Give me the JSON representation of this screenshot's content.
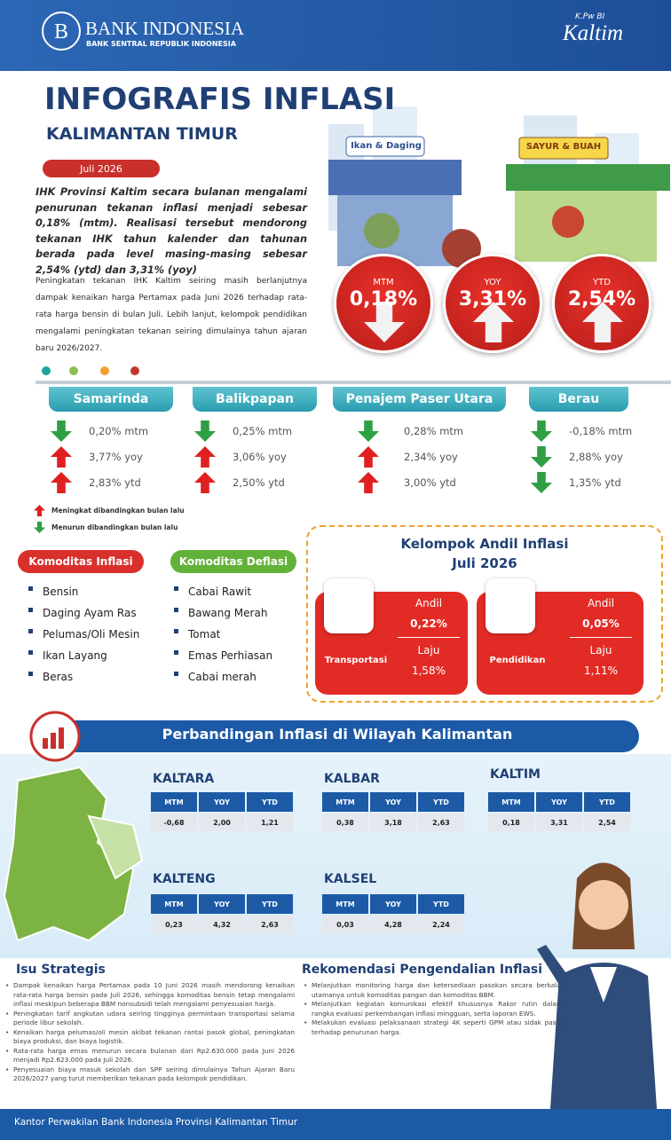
{
  "header": {
    "bank_name": "BANK INDONESIA",
    "bank_sub": "BANK SENTRAL REPUBLIK INDONESIA",
    "kpw_small": "K.Pw BI",
    "kpw_big": "Kaltim"
  },
  "title": "INFOGRAFIS INFLASI",
  "subtitle": "KALIMANTAN TIMUR",
  "date": "Juli 2026",
  "intro": "IHK Provinsi Kaltim secara bulanan mengalami penurunan tekanan inflasi menjadi sebesar 0,18% (mtm). Realisasi tersebut mendorong tekanan IHK tahun kalender dan tahunan berada pada level masing-masing sebesar 2,54% (ytd) dan 3,31% (yoy)",
  "body": "Peningkatan tekanan IHK Kaltim seiring masih berlanjutnya dampak kenaikan harga Pertamax pada Juni 2026 terhadap rata-rata harga bensin di bulan Juli. Lebih lanjut, kelompok pendidikan mengalami peningkatan tekanan seiring dimulainya tahun ajaran baru 2026/2027.",
  "market_signs": [
    "Ikan & Daging",
    "SAYUR & BUAH"
  ],
  "headline": [
    {
      "label": "MTM",
      "value": "0,18%",
      "direction": "down"
    },
    {
      "label": "YOY",
      "value": "3,31%",
      "direction": "up"
    },
    {
      "label": "YTD",
      "value": "2,54%",
      "direction": "up"
    }
  ],
  "cities": [
    {
      "name": "Samarinda",
      "rows": [
        {
          "direction": "down",
          "text": "0,20% mtm"
        },
        {
          "direction": "up",
          "text": "3,77% yoy"
        },
        {
          "direction": "up",
          "text": "2,83% ytd"
        }
      ]
    },
    {
      "name": "Balikpapan",
      "rows": [
        {
          "direction": "down",
          "text": "0,25% mtm"
        },
        {
          "direction": "up",
          "text": "3,06% yoy"
        },
        {
          "direction": "up",
          "text": "2,50% ytd"
        }
      ]
    },
    {
      "name": "Penajem Paser Utara",
      "rows": [
        {
          "direction": "down",
          "text": "0,28% mtm"
        },
        {
          "direction": "up",
          "text": "2,34% yoy"
        },
        {
          "direction": "up",
          "text": "3,00% ytd"
        }
      ]
    },
    {
      "name": "Berau",
      "rows": [
        {
          "direction": "down",
          "text": "-0,18% mtm"
        },
        {
          "direction": "down",
          "text": "2,88% yoy"
        },
        {
          "direction": "down",
          "text": "1,35% ytd"
        }
      ]
    }
  ],
  "legend": [
    {
      "direction": "up",
      "text": "Meningkat dibandingkan bulan lalu"
    },
    {
      "direction": "down",
      "text": "Menurun dibandingkan bulan lalu"
    }
  ],
  "komoditas_inflasi": {
    "title": "Komoditas Inflasi",
    "items": [
      "Bensin",
      "Daging Ayam Ras",
      "Pelumas/Oli Mesin",
      "Ikan Layang",
      "Beras"
    ]
  },
  "komoditas_deflasi": {
    "title": "Komoditas Deflasi",
    "items": [
      "Cabai Rawit",
      "Bawang Merah",
      "Tomat",
      "Emas Perhiasan",
      "Cabai merah"
    ]
  },
  "andil": {
    "title": "Kelompok Andil Inflasi",
    "period": "Juli 2026",
    "groups": [
      {
        "name": "Transportasi",
        "andil_label": "Andil",
        "andil": "0,22%",
        "laju_label": "Laju",
        "laju": "1,58%"
      },
      {
        "name": "Pendidikan",
        "andil_label": "Andil",
        "andil": "0,05%",
        "laju_label": "Laju",
        "laju": "1,11%"
      }
    ]
  },
  "perbandingan": {
    "title": "Perbandingan  Inflasi di Wilayah Kalimantan",
    "headers": [
      "MTM",
      "YOY",
      "YTD"
    ],
    "regions": [
      {
        "name": "KALTARA",
        "values": [
          "-0,68",
          "2,00",
          "1,21"
        ]
      },
      {
        "name": "KALBAR",
        "values": [
          "0,38",
          "3,18",
          "2,63"
        ]
      },
      {
        "name": "KALTIM",
        "values": [
          "0,18",
          "3,31",
          "2,54"
        ]
      },
      {
        "name": "KALTENG",
        "values": [
          "0,23",
          "4,32",
          "2,63"
        ]
      },
      {
        "name": "KALSEL",
        "values": [
          "0,03",
          "4,28",
          "2,24"
        ]
      }
    ]
  },
  "isu": {
    "title": "Isu Strategis",
    "items": [
      "Dampak kenaikan harga Pertamax pada 10 Juni 2026 masih mendorong kenaikan rata-rata harga bensin pada Juli 2026, sehingga komoditas bensin tetap mengalami inflasi meskipun beberapa BBM nonsubsidi telah mengalami penyesuaian harga.",
      "Peningkatan tarif angkutan udara seiring tingginya permintaan transportasi selama periode libur sekolah.",
      "Kenaikan harga pelumas/oli mesin akibat tekanan rantai pasok global, peningkatan biaya produksi, dan biaya logistik.",
      "Rata-rata harga emas menurun secara bulanan dari Rp2.630.000 pada Juni 2026 menjadi Rp2.623.000 pada Juli 2026.",
      "Penyesuaian biaya masuk sekolah dan SPP seiring dimulainya Tahun Ajaran Baru 2026/2027 yang turut memberikan tekanan pada kelompok pendidikan."
    ]
  },
  "rekomendasi": {
    "title": "Rekomendasi Pengendalian Inflasi",
    "items": [
      "Melanjutkan monitoring harga dan ketersediaan pasokan secara berkala, utamanya untuk komoditas pangan dan komoditas BBM.",
      "Melanjutkan kegiatan komunikasi efektif khususnya Rakor rutin dalam rangka evaluasi perkembangan inflasi mingguan, serta laporan EWS.",
      "Melakukan evaluasi pelaksanaan strategi 4K seperti GPM atau sidak pasar terhadap penurunan harga."
    ]
  },
  "footer": "Kantor Perwakilan Bank Indonesia Provinsi Kalimantan Timur"
}
